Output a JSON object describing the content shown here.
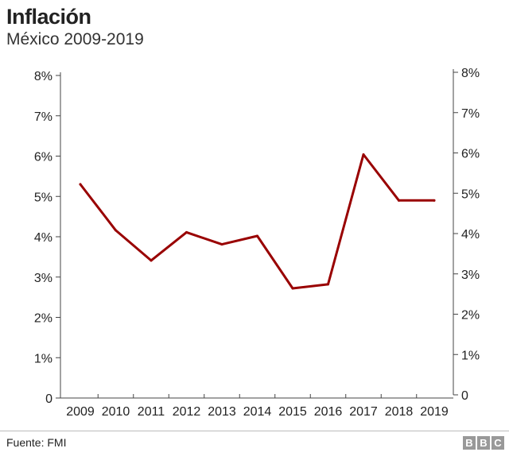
{
  "title": "Inflación",
  "subtitle": "México 2009-2019",
  "source": "Fuente: FMI",
  "logo": [
    "B",
    "B",
    "C"
  ],
  "chart_data": {
    "type": "line",
    "title": "Inflación",
    "subtitle": "México 2009-2019",
    "xlabel": "",
    "ylabel": "",
    "categories": [
      "2009",
      "2010",
      "2011",
      "2012",
      "2013",
      "2014",
      "2015",
      "2016",
      "2017",
      "2018",
      "2019"
    ],
    "series": [
      {
        "values": [
          5.3,
          4.16,
          3.41,
          4.11,
          3.81,
          4.02,
          2.72,
          2.82,
          6.04,
          4.9,
          4.9
        ],
        "color": "#990000"
      }
    ],
    "ylim": [
      0,
      8
    ],
    "y_ticks_left": [
      "0",
      "1%",
      "2%",
      "3%",
      "4%",
      "5%",
      "6%",
      "7%",
      "8%"
    ],
    "y_ticks_right": [
      "0",
      "1%",
      "2%",
      "3%",
      "4%",
      "5%",
      "6%",
      "7%",
      "8%"
    ],
    "grid": false
  }
}
